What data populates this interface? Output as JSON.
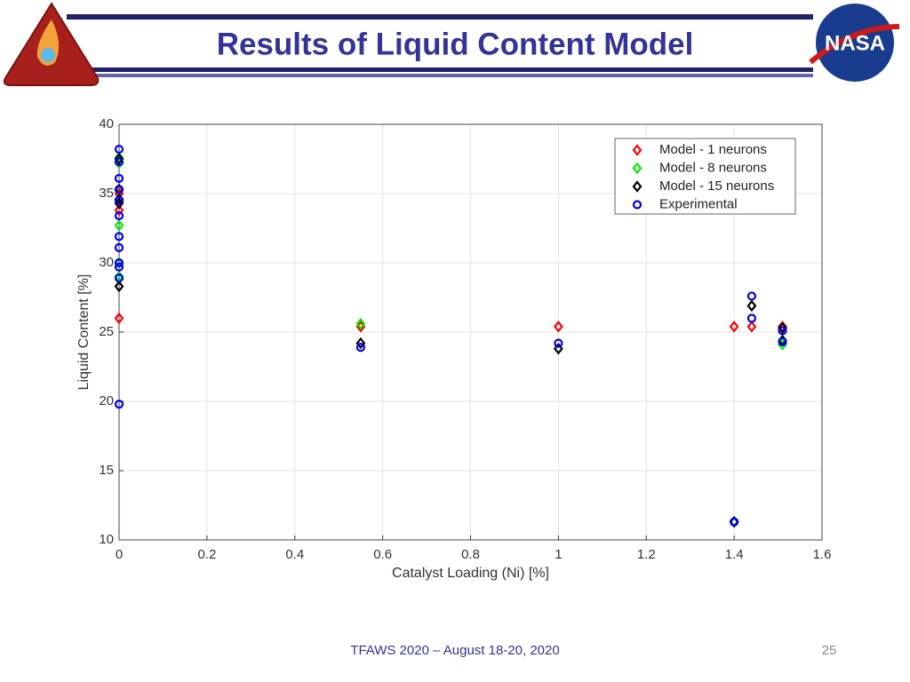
{
  "header": {
    "title": "Results of Liquid Content Model",
    "logo_text": "NASA"
  },
  "footer": {
    "text": "TFAWS 2020 – August 18-20, 2020",
    "page": "25"
  },
  "chart_data": {
    "type": "scatter",
    "x_label": "Catalyst Loading (Ni) [%]",
    "y_label": "Liquid Content [%]",
    "xlim": [
      0,
      1.6
    ],
    "xticks": [
      0,
      0.2,
      0.4,
      0.6,
      0.8,
      1,
      1.2,
      1.4,
      1.6
    ],
    "ylim": [
      10,
      40
    ],
    "yticks": [
      10,
      15,
      20,
      25,
      30,
      35,
      40
    ],
    "grid": true,
    "legend": "upper right",
    "series": [
      {
        "name": "Model - 1 neurons",
        "color": "#ff0000",
        "marker": "diamond",
        "x": [
          0,
          0,
          0,
          0.55,
          1,
          1.4,
          1.44,
          1.51
        ],
        "values": [
          26.0,
          33.8,
          35.0,
          25.4,
          25.4,
          25.4,
          25.4,
          25.4
        ]
      },
      {
        "name": "Model - 8 neurons",
        "color": "#00ee00",
        "marker": "diamond",
        "x": [
          0,
          0,
          0,
          0,
          0,
          0.55,
          1.4,
          1.51
        ],
        "values": [
          37.6,
          37.2,
          32.7,
          30.0,
          29.0,
          25.6,
          11.3,
          24.1
        ]
      },
      {
        "name": "Model - 15 neurons",
        "color": "#000000",
        "marker": "diamond",
        "x": [
          0,
          0,
          0,
          0,
          0,
          0.55,
          1,
          1.4,
          1.44,
          1.51,
          1.51
        ],
        "values": [
          37.5,
          35.3,
          34.6,
          34.3,
          28.3,
          24.2,
          23.8,
          11.3,
          26.9,
          25.3,
          24.4
        ]
      },
      {
        "name": "Experimental",
        "color": "#0000ee",
        "marker": "circle",
        "x": [
          0,
          0,
          0,
          0,
          0,
          0,
          0,
          0,
          0,
          0,
          0,
          0,
          0.55,
          1,
          1.4,
          1.44,
          1.44,
          1.51,
          1.51
        ],
        "values": [
          38.2,
          37.3,
          36.1,
          35.3,
          34.5,
          33.4,
          31.9,
          31.1,
          30.0,
          29.7,
          28.9,
          19.8,
          23.9,
          24.2,
          11.3,
          27.6,
          26.0,
          25.1,
          24.3
        ]
      }
    ]
  }
}
